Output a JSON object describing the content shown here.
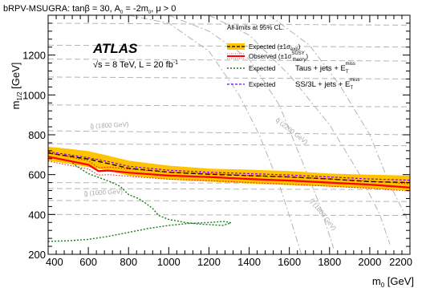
{
  "chart_data": {
    "type": "line",
    "title": "bRPV-MSUGRA: tanβ = 30, A0 = -2m0, μ > 0",
    "title_parts": {
      "prefix": "bRPV-MSUGRA: tanβ = 30, A",
      "sub": "0",
      "suffix": " = -2m",
      "sub2": "0",
      "suffix2": ", μ > 0"
    },
    "xlabel": "m0 [GeV]",
    "xlabel_parts": {
      "main": "m",
      "sub": "0",
      "unit": " [GeV]"
    },
    "ylabel": "m1/2 [GeV]",
    "ylabel_parts": {
      "main": "m",
      "sub": "1/2",
      "unit": " [GeV]"
    },
    "xlim": [
      400,
      2200
    ],
    "ylim": [
      200,
      1400
    ],
    "xticks": [
      400,
      600,
      800,
      1000,
      1200,
      1400,
      1600,
      1800,
      2000,
      2200
    ],
    "yticks": [
      200,
      400,
      600,
      800,
      1000,
      1200
    ],
    "grid": false,
    "legend_placement": "top-right",
    "annotations": {
      "atlas": "ATLAS",
      "energy_prefix": "s = 8 TeV, L = 20 fb",
      "energy_sup": "-1",
      "all_limits": "All limits at 95% CL.",
      "legend_expected": "Expected (±1σ",
      "legend_expected_sub": "exp",
      "legend_observed": "Observed (±1σ",
      "legend_observed_sup": "SUSY",
      "legend_observed_sub": "theory",
      "legend_close": ")",
      "legend_taus_expected": "Expected",
      "legend_taus_channel": "Taus + jets + E",
      "legend_ss_expected": "Expected",
      "legend_ss_channel": "SS/3L + jets + E",
      "miss_sub": "T",
      "miss_sup": "miss",
      "sqrt_symbol": "√"
    },
    "contour_labels": [
      {
        "text": "g̃ (1800 GeV)",
        "x": 610,
        "y": 832,
        "angle": -3
      },
      {
        "text": "q̃ (2200 GeV)",
        "x": 1530,
        "y": 870,
        "angle": 38
      },
      {
        "text": "q̃ (1800 GeV)",
        "x": 1700,
        "y": 470,
        "angle": 52
      },
      {
        "text": "g̃ (1000 GeV)",
        "x": 580,
        "y": 495,
        "angle": -3
      }
    ],
    "series": [
      {
        "name": "Expected (±1σexp)",
        "role": "band",
        "color": "#ffc300",
        "upper": [
          [
            400,
            740
          ],
          [
            500,
            730
          ],
          [
            600,
            718
          ],
          [
            700,
            695
          ],
          [
            800,
            670
          ],
          [
            1000,
            645
          ],
          [
            1200,
            630
          ],
          [
            1400,
            625
          ],
          [
            1600,
            618
          ],
          [
            1800,
            605
          ],
          [
            2000,
            600
          ],
          [
            2200,
            595
          ]
        ],
        "lower": [
          [
            400,
            670
          ],
          [
            500,
            655
          ],
          [
            600,
            638
          ],
          [
            700,
            620
          ],
          [
            800,
            595
          ],
          [
            1000,
            575
          ],
          [
            1200,
            565
          ],
          [
            1400,
            555
          ],
          [
            1600,
            548
          ],
          [
            1800,
            540
          ],
          [
            2000,
            530
          ],
          [
            2200,
            520
          ]
        ]
      },
      {
        "name": "Expected central",
        "role": "expected-line",
        "color": "#000000",
        "points": [
          [
            400,
            708
          ],
          [
            500,
            693
          ],
          [
            600,
            678
          ],
          [
            700,
            655
          ],
          [
            800,
            632
          ],
          [
            1000,
            612
          ],
          [
            1200,
            602
          ],
          [
            1400,
            595
          ],
          [
            1600,
            588
          ],
          [
            1800,
            578
          ],
          [
            2000,
            565
          ],
          [
            2200,
            560
          ]
        ]
      },
      {
        "name": "Observed (±1σtheory)",
        "role": "observed",
        "color": "#ff0000",
        "points": [
          [
            400,
            690
          ],
          [
            500,
            670
          ],
          [
            600,
            650
          ],
          [
            650,
            618
          ],
          [
            700,
            620
          ],
          [
            800,
            610
          ],
          [
            1000,
            595
          ],
          [
            1200,
            588
          ],
          [
            1400,
            578
          ],
          [
            1600,
            570
          ],
          [
            1800,
            560
          ],
          [
            2000,
            550
          ],
          [
            2200,
            535
          ]
        ],
        "upper": [
          [
            400,
            710
          ],
          [
            500,
            690
          ],
          [
            600,
            670
          ],
          [
            650,
            635
          ],
          [
            700,
            638
          ],
          [
            800,
            628
          ],
          [
            1000,
            612
          ],
          [
            1200,
            606
          ],
          [
            1400,
            596
          ],
          [
            1600,
            588
          ],
          [
            1800,
            578
          ],
          [
            2000,
            568
          ],
          [
            2200,
            553
          ]
        ],
        "lower": [
          [
            400,
            668
          ],
          [
            500,
            648
          ],
          [
            600,
            628
          ],
          [
            650,
            598
          ],
          [
            700,
            600
          ],
          [
            800,
            592
          ],
          [
            1000,
            577
          ],
          [
            1200,
            570
          ],
          [
            1400,
            560
          ],
          [
            1600,
            552
          ],
          [
            1800,
            542
          ],
          [
            2000,
            532
          ],
          [
            2200,
            517
          ]
        ]
      },
      {
        "name": "Expected Taus + jets + ETmiss",
        "role": "taus",
        "color": "#1a7a1a",
        "points": [
          [
            400,
            265
          ],
          [
            500,
            268
          ],
          [
            600,
            275
          ],
          [
            700,
            290
          ],
          [
            800,
            310
          ],
          [
            900,
            330
          ],
          [
            1000,
            345
          ],
          [
            1100,
            355
          ],
          [
            1200,
            360
          ],
          [
            1280,
            365
          ],
          [
            1310,
            358
          ],
          [
            1290,
            352
          ],
          [
            1270,
            345
          ],
          [
            1220,
            348
          ],
          [
            1150,
            352
          ],
          [
            1080,
            360
          ],
          [
            1000,
            375
          ],
          [
            950,
            395
          ],
          [
            920,
            430
          ],
          [
            880,
            460
          ],
          [
            850,
            480
          ],
          [
            800,
            500
          ],
          [
            780,
            520
          ],
          [
            760,
            540
          ],
          [
            720,
            560
          ],
          [
            680,
            575
          ],
          [
            640,
            590
          ],
          [
            600,
            605
          ],
          [
            560,
            630
          ],
          [
            520,
            660
          ]
        ]
      },
      {
        "name": "Expected SS/3L + jets + ETmiss",
        "role": "ss3l",
        "color": "#8000ff",
        "points": [
          [
            400,
            715
          ],
          [
            500,
            700
          ],
          [
            600,
            685
          ],
          [
            700,
            665
          ],
          [
            800,
            642
          ],
          [
            1000,
            622
          ],
          [
            1200,
            612
          ],
          [
            1400,
            605
          ],
          [
            1600,
            598
          ],
          [
            1800,
            588
          ],
          [
            2000,
            578
          ],
          [
            2200,
            572
          ]
        ]
      }
    ],
    "gray_contours": [
      {
        "style": "dash",
        "points": [
          [
            400,
            950
          ],
          [
            2200,
            940
          ]
        ]
      },
      {
        "style": "dash",
        "points": [
          [
            400,
            1090
          ],
          [
            2200,
            1080
          ]
        ]
      },
      {
        "style": "dash",
        "points": [
          [
            400,
            1180
          ],
          [
            2200,
            1170
          ]
        ]
      },
      {
        "style": "dash",
        "points": [
          [
            400,
            1250
          ],
          [
            2200,
            1240
          ]
        ]
      },
      {
        "style": "dash",
        "points": [
          [
            400,
            1360
          ],
          [
            2200,
            1350
          ]
        ]
      },
      {
        "style": "dash",
        "points": [
          [
            400,
            820
          ],
          [
            2200,
            800
          ]
        ]
      },
      {
        "style": "dash",
        "points": [
          [
            400,
            755
          ],
          [
            2200,
            745
          ]
        ]
      },
      {
        "style": "dash",
        "points": [
          [
            400,
            560
          ],
          [
            2200,
            555
          ]
        ]
      },
      {
        "style": "dash",
        "points": [
          [
            400,
            530
          ],
          [
            2200,
            525
          ]
        ]
      },
      {
        "style": "dash",
        "points": [
          [
            400,
            470
          ],
          [
            2200,
            465
          ]
        ]
      },
      {
        "style": "dash",
        "points": [
          [
            400,
            400
          ],
          [
            2200,
            395
          ]
        ]
      },
      {
        "style": "dashdot",
        "points": [
          [
            1200,
            1400
          ],
          [
            1400,
            1300
          ],
          [
            1600,
            1100
          ],
          [
            1800,
            850
          ],
          [
            1950,
            600
          ],
          [
            2050,
            400
          ],
          [
            2100,
            250
          ]
        ]
      },
      {
        "style": "dashdot",
        "points": [
          [
            1500,
            1400
          ],
          [
            1700,
            1250
          ],
          [
            1850,
            1050
          ],
          [
            2000,
            800
          ],
          [
            2100,
            550
          ],
          [
            2200,
            350
          ]
        ]
      },
      {
        "style": "dashdot",
        "points": [
          [
            1000,
            1400
          ],
          [
            1200,
            1320
          ],
          [
            1400,
            1180
          ],
          [
            1550,
            950
          ],
          [
            1650,
            700
          ],
          [
            1750,
            450
          ],
          [
            1820,
            230
          ]
        ]
      },
      {
        "style": "dashdot",
        "points": [
          [
            800,
            1400
          ],
          [
            1000,
            1360
          ],
          [
            1200,
            1220
          ],
          [
            1350,
            1000
          ],
          [
            1450,
            800
          ],
          [
            1550,
            550
          ],
          [
            1620,
            330
          ],
          [
            1660,
            200
          ]
        ]
      }
    ]
  }
}
